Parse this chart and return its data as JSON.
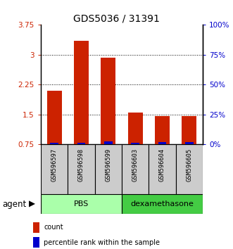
{
  "title": "GDS5036 / 31391",
  "samples": [
    "GSM596597",
    "GSM596598",
    "GSM596599",
    "GSM596603",
    "GSM596604",
    "GSM596605"
  ],
  "red_values": [
    2.1,
    3.35,
    2.93,
    1.55,
    1.47,
    1.47
  ],
  "blue_values": [
    0.04,
    0.04,
    0.07,
    0.04,
    0.05,
    0.05
  ],
  "y_min": 0.75,
  "y_max": 3.75,
  "y_ticks_left": [
    0.75,
    1.5,
    2.25,
    3.0,
    3.75
  ],
  "y_tick_labels_left": [
    "0.75",
    "1.5",
    "2.25",
    "3",
    "3.75"
  ],
  "y_ticks_right_vals": [
    0.75,
    1.5,
    2.25,
    3.0,
    3.75
  ],
  "y_tick_labels_right": [
    "0%",
    "25%",
    "50%",
    "75%",
    "100%"
  ],
  "groups": [
    {
      "label": "PBS",
      "color": "#aaffaa",
      "indices": [
        0,
        1,
        2
      ]
    },
    {
      "label": "dexamethasone",
      "color": "#44cc44",
      "indices": [
        3,
        4,
        5
      ]
    }
  ],
  "sample_box_color": "#cccccc",
  "bar_width": 0.55,
  "blue_bar_width": 0.3,
  "red_color": "#cc2200",
  "blue_color": "#0000cc",
  "agent_label": "agent",
  "legend_items": [
    {
      "label": "count",
      "color": "#cc2200"
    },
    {
      "label": "percentile rank within the sample",
      "color": "#0000cc"
    }
  ],
  "dotted_lines": [
    1.5,
    2.25,
    3.0
  ],
  "figsize": [
    3.31,
    3.54
  ],
  "dpi": 100
}
